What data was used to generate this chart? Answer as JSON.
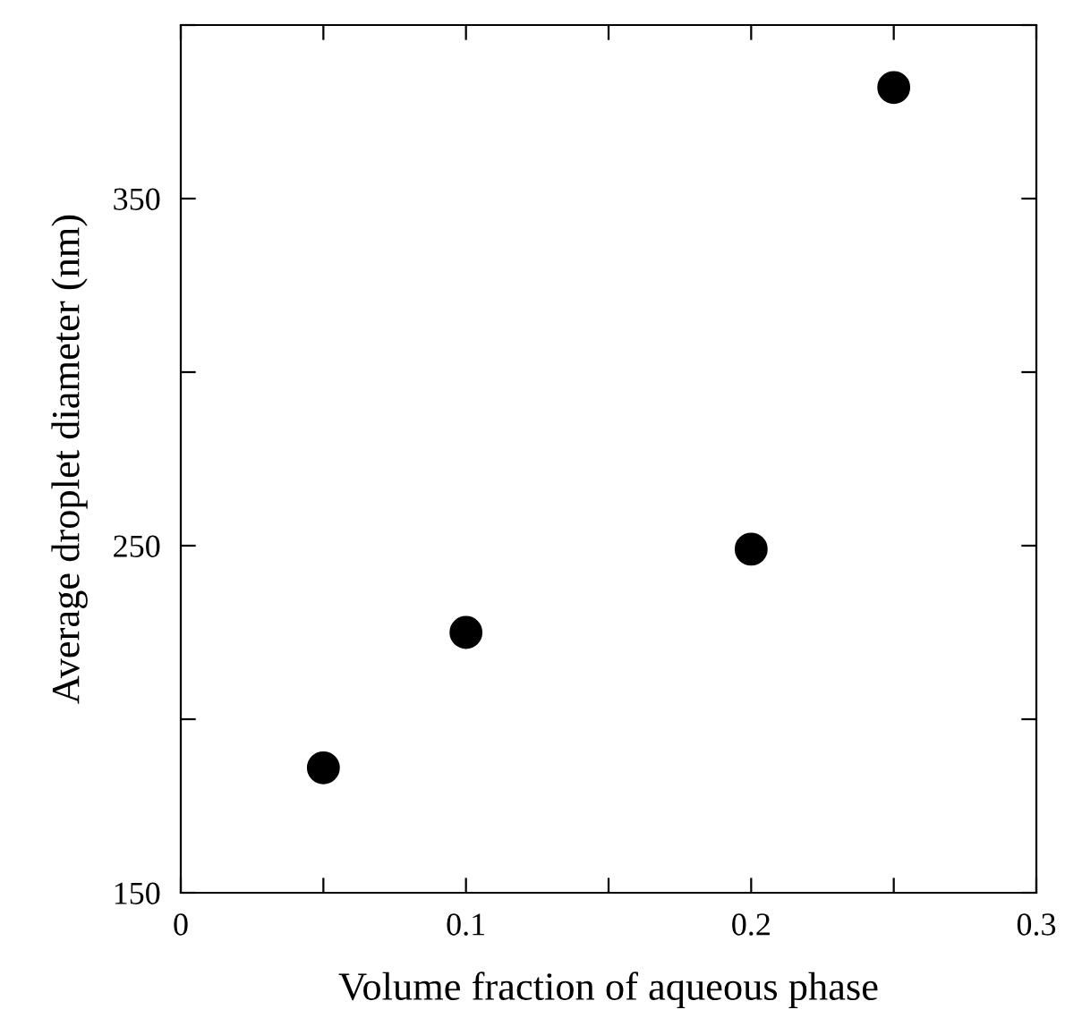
{
  "chart_data": {
    "type": "scatter",
    "xlabel": "Volume fraction of aqueous phase",
    "ylabel": "Average droplet diameter (nm)",
    "x": [
      0.05,
      0.1,
      0.2,
      0.25
    ],
    "series": [
      {
        "color": "#000000",
        "values": [
          186,
          225,
          249,
          382
        ]
      }
    ],
    "marker": "circle",
    "xlim": [
      0,
      0.3
    ],
    "xticks": [
      0,
      {
        "value": 0.05,
        "label": null
      },
      0.1,
      {
        "value": 0.15,
        "label": null
      },
      0.2,
      {
        "value": 0.25,
        "label": null
      },
      0.3
    ],
    "ylim": [
      150,
      400
    ],
    "yticks": [
      150,
      {
        "value": 200,
        "label": null
      },
      250,
      {
        "value": 300,
        "label": null
      },
      350,
      {
        "value": 400,
        "label": null
      }
    ],
    "grid": false,
    "legend": false
  }
}
